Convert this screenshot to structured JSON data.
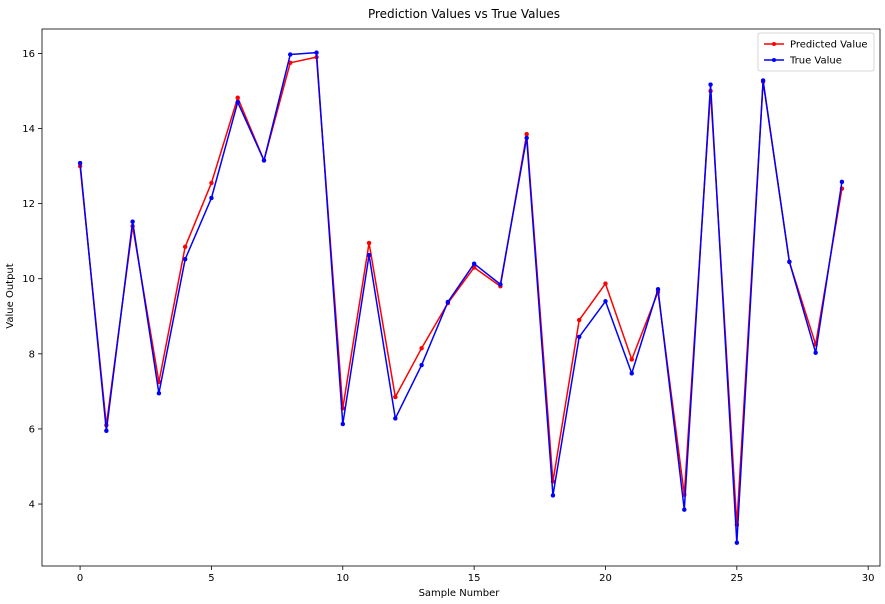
{
  "chart_data": {
    "type": "line",
    "title": "Prediction Values vs True Values",
    "xlabel": "Sample Number",
    "ylabel": "Value Output",
    "xlim": [
      -1.45,
      30.45
    ],
    "ylim": [
      2.35,
      16.65
    ],
    "xticks": [
      0,
      5,
      10,
      15,
      20,
      25,
      30
    ],
    "yticks": [
      4,
      6,
      8,
      10,
      12,
      14,
      16
    ],
    "grid": false,
    "legend_position": "top-right",
    "x": [
      0,
      1,
      2,
      3,
      4,
      5,
      6,
      7,
      8,
      9,
      10,
      11,
      12,
      13,
      14,
      15,
      16,
      17,
      18,
      19,
      20,
      21,
      22,
      23,
      24,
      25,
      26,
      27,
      28,
      29
    ],
    "series": [
      {
        "name": "Predicted Value",
        "color": "#ff0000",
        "marker": "dot",
        "values": [
          13.0,
          6.1,
          11.4,
          7.25,
          10.85,
          12.55,
          14.82,
          13.15,
          15.75,
          15.9,
          6.55,
          10.95,
          6.85,
          8.15,
          9.35,
          10.3,
          9.8,
          13.85,
          4.6,
          8.9,
          9.87,
          7.85,
          9.65,
          4.25,
          15.0,
          3.45,
          15.25,
          10.45,
          8.25,
          12.4
        ]
      },
      {
        "name": "True Value",
        "color": "#0000ff",
        "marker": "dot",
        "values": [
          13.08,
          5.95,
          11.52,
          6.95,
          10.52,
          12.15,
          14.7,
          13.15,
          15.97,
          16.02,
          6.13,
          10.63,
          6.28,
          7.7,
          9.38,
          10.4,
          9.85,
          13.75,
          4.23,
          8.45,
          9.4,
          7.48,
          9.72,
          3.85,
          15.17,
          2.97,
          15.28,
          10.45,
          8.03,
          12.58
        ]
      }
    ]
  }
}
